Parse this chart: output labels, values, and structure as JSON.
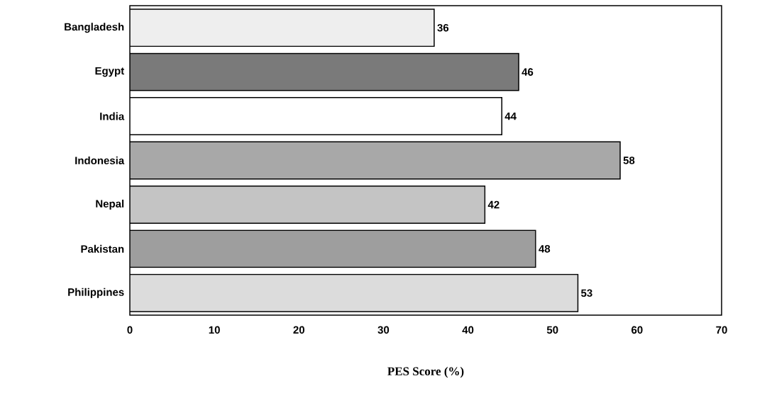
{
  "chart_data": {
    "type": "bar",
    "orientation": "horizontal",
    "xlabel": "PES Score (%)",
    "categories": [
      "Bangladesh",
      "Egypt",
      "India",
      "Indonesia",
      "Nepal",
      "Pakistan",
      "Philippines"
    ],
    "values": [
      36,
      46,
      44,
      58,
      42,
      48,
      53
    ],
    "colors": [
      "#eeeeee",
      "#7a7a7a",
      "#ffffff",
      "#a8a8a8",
      "#c4c4c4",
      "#9e9e9e",
      "#dcdcdc"
    ],
    "data_labels": true,
    "xlim": [
      0,
      70
    ],
    "xticks": [
      0,
      10,
      20,
      30,
      40,
      50,
      60,
      70
    ],
    "grid": false
  }
}
